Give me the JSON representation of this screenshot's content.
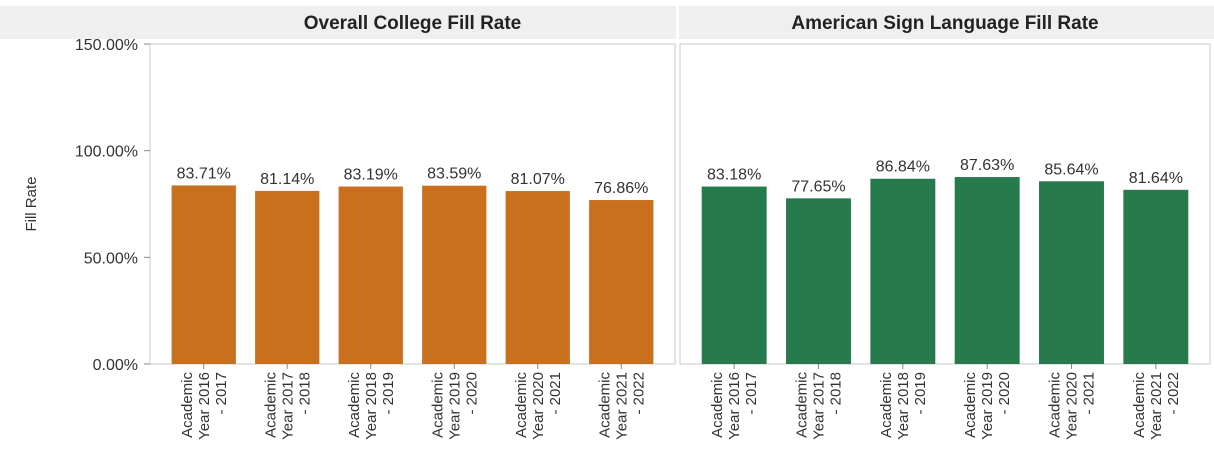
{
  "chart_data": [
    {
      "type": "bar",
      "title": "Overall College Fill Rate",
      "ylabel": "Fill Rate",
      "ylim": [
        0,
        150
      ],
      "yticks": [
        "0.00%",
        "50.00%",
        "100.00%",
        "150.00%"
      ],
      "ytick_values": [
        0,
        50,
        100,
        150
      ],
      "categories": [
        [
          "Academic",
          "Year 2016",
          "- 2017"
        ],
        [
          "Academic",
          "Year 2017",
          "- 2018"
        ],
        [
          "Academic",
          "Year 2018",
          "- 2019"
        ],
        [
          "Academic",
          "Year 2019",
          "- 2020"
        ],
        [
          "Academic",
          "Year 2020",
          "- 2021"
        ],
        [
          "Academic",
          "Year 2021",
          "- 2022"
        ]
      ],
      "values": [
        83.71,
        81.14,
        83.19,
        83.59,
        81.07,
        76.86
      ],
      "labels": [
        "83.71%",
        "81.14%",
        "83.19%",
        "83.59%",
        "81.07%",
        "76.86%"
      ],
      "color": "#c8701e",
      "grid": false
    },
    {
      "type": "bar",
      "title": "American Sign Language Fill Rate",
      "ylim": [
        0,
        150
      ],
      "categories": [
        [
          "Academic",
          "Year 2016",
          "- 2017"
        ],
        [
          "Academic",
          "Year 2017",
          "- 2018"
        ],
        [
          "Academic",
          "Year 2018",
          "- 2019"
        ],
        [
          "Academic",
          "Year 2019",
          "- 2020"
        ],
        [
          "Academic",
          "Year 2020",
          "- 2021"
        ],
        [
          "Academic",
          "Year 2021",
          "- 2022"
        ]
      ],
      "values": [
        83.18,
        77.65,
        86.84,
        87.63,
        85.64,
        81.64
      ],
      "labels": [
        "83.18%",
        "77.65%",
        "86.84%",
        "87.63%",
        "85.64%",
        "81.64%"
      ],
      "color": "#277a4b",
      "grid": false
    }
  ]
}
